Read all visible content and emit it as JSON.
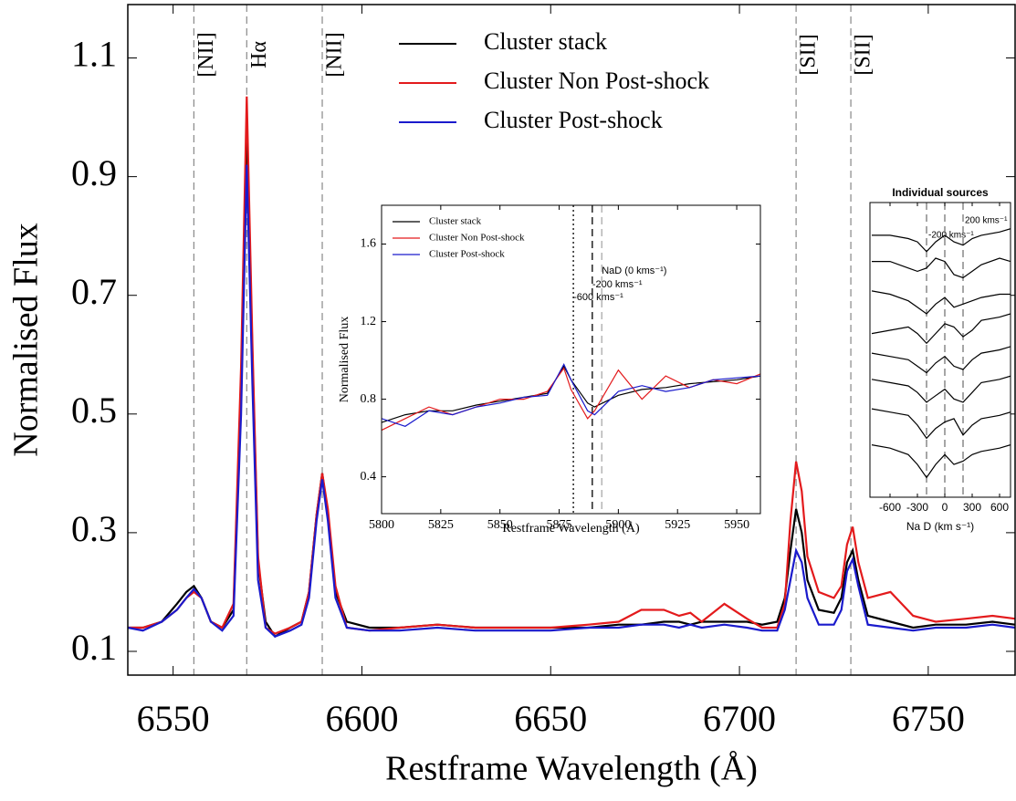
{
  "chart_data": [
    {
      "type": "line",
      "xlabel": "Restframe Wavelength (Å)",
      "ylabel": "Normalised Flux",
      "xlim": [
        6538,
        6773
      ],
      "ylim": [
        0.06,
        1.19
      ],
      "xticks": [
        6550,
        6600,
        6650,
        6700,
        6750
      ],
      "yticks": [
        0.1,
        0.3,
        0.5,
        0.7,
        0.9,
        1.1
      ],
      "legend": "upper center",
      "lines": [
        {
          "x": 6555.5,
          "label": "[NII]",
          "color": "#888888",
          "style": "dashed"
        },
        {
          "x": 6569.5,
          "label": "Hα",
          "color": "#888888",
          "style": "dashed"
        },
        {
          "x": 6589.5,
          "label": "[NII]",
          "color": "#888888",
          "style": "dashed"
        },
        {
          "x": 6715,
          "label": "[SII]",
          "color": "#888888",
          "style": "dashed"
        },
        {
          "x": 6729.5,
          "label": "[SII]",
          "color": "#888888",
          "style": "dashed"
        }
      ],
      "x": [
        6538,
        6542,
        6547,
        6551,
        6553.5,
        6555.5,
        6557.5,
        6560,
        6563,
        6566,
        6568,
        6569.5,
        6571,
        6572.5,
        6574.5,
        6577,
        6581,
        6584,
        6586,
        6588,
        6589.5,
        6591,
        6593,
        6596,
        6602,
        6610,
        6620,
        6630,
        6640,
        6650,
        6660,
        6668,
        6674,
        6680,
        6684,
        6687,
        6690,
        6696,
        6702,
        6706,
        6710,
        6712,
        6713.5,
        6715,
        6716.5,
        6718,
        6721,
        6725,
        6727,
        6728.5,
        6730,
        6731.5,
        6734,
        6740,
        6746,
        6752,
        6760,
        6767,
        6773
      ],
      "series": [
        {
          "name": "Cluster stack",
          "color": "#000000",
          "values": [
            0.14,
            0.14,
            0.15,
            0.18,
            0.2,
            0.21,
            0.19,
            0.15,
            0.14,
            0.17,
            0.55,
            1.0,
            0.6,
            0.25,
            0.15,
            0.125,
            0.14,
            0.15,
            0.2,
            0.33,
            0.4,
            0.33,
            0.2,
            0.15,
            0.14,
            0.14,
            0.145,
            0.14,
            0.14,
            0.14,
            0.14,
            0.145,
            0.145,
            0.15,
            0.15,
            0.145,
            0.15,
            0.15,
            0.15,
            0.145,
            0.15,
            0.19,
            0.27,
            0.34,
            0.3,
            0.22,
            0.17,
            0.165,
            0.19,
            0.25,
            0.27,
            0.22,
            0.16,
            0.15,
            0.14,
            0.145,
            0.145,
            0.15,
            0.145
          ]
        },
        {
          "name": "Cluster Non Post-shock",
          "color": "#e31a1c",
          "values": [
            0.14,
            0.14,
            0.15,
            0.17,
            0.19,
            0.2,
            0.19,
            0.15,
            0.14,
            0.18,
            0.58,
            1.035,
            0.62,
            0.26,
            0.14,
            0.13,
            0.14,
            0.15,
            0.2,
            0.33,
            0.4,
            0.34,
            0.21,
            0.14,
            0.135,
            0.14,
            0.145,
            0.14,
            0.14,
            0.14,
            0.145,
            0.15,
            0.17,
            0.17,
            0.16,
            0.165,
            0.15,
            0.18,
            0.155,
            0.14,
            0.14,
            0.18,
            0.32,
            0.42,
            0.37,
            0.26,
            0.2,
            0.19,
            0.21,
            0.28,
            0.31,
            0.25,
            0.19,
            0.2,
            0.16,
            0.15,
            0.155,
            0.16,
            0.155
          ]
        },
        {
          "name": "Cluster Post-shock",
          "color": "#1a1acc",
          "values": [
            0.14,
            0.135,
            0.15,
            0.17,
            0.19,
            0.205,
            0.19,
            0.15,
            0.135,
            0.16,
            0.5,
            0.92,
            0.55,
            0.22,
            0.14,
            0.125,
            0.135,
            0.145,
            0.19,
            0.32,
            0.39,
            0.32,
            0.19,
            0.14,
            0.135,
            0.135,
            0.14,
            0.135,
            0.135,
            0.135,
            0.14,
            0.14,
            0.145,
            0.145,
            0.14,
            0.145,
            0.14,
            0.145,
            0.14,
            0.135,
            0.135,
            0.17,
            0.22,
            0.27,
            0.25,
            0.19,
            0.145,
            0.145,
            0.17,
            0.235,
            0.255,
            0.21,
            0.145,
            0.14,
            0.135,
            0.14,
            0.14,
            0.145,
            0.14
          ]
        }
      ]
    },
    {
      "type": "line",
      "xlabel": "Restframe Wavelength (Å)",
      "ylabel": "Normalised Flux",
      "xlim": [
        5800,
        5960
      ],
      "ylim": [
        0.21,
        1.8
      ],
      "xticks": [
        5800,
        5825,
        5850,
        5875,
        5900,
        5925,
        5950
      ],
      "yticks": [
        0.4,
        0.8,
        1.2,
        1.6
      ],
      "legend": "upper left",
      "lines": [
        {
          "x": 5881,
          "label": "-600 kms⁻¹",
          "color": "#000000",
          "style": "dotted"
        },
        {
          "x": 5889,
          "label": "-200 kms⁻¹",
          "color": "#000000",
          "style": "dashed"
        },
        {
          "x": 5893,
          "label": "NaD (0 kms⁻¹)",
          "color": "#aaaaaa",
          "style": "dashed"
        }
      ],
      "x": [
        5800,
        5810,
        5820,
        5830,
        5840,
        5850,
        5860,
        5870,
        5877,
        5880,
        5887,
        5890,
        5900,
        5910,
        5920,
        5930,
        5940,
        5950,
        5960
      ],
      "series": [
        {
          "name": "Cluster stack",
          "color": "#000000",
          "values": [
            0.68,
            0.72,
            0.74,
            0.74,
            0.77,
            0.79,
            0.81,
            0.83,
            0.97,
            0.9,
            0.78,
            0.76,
            0.82,
            0.85,
            0.86,
            0.88,
            0.89,
            0.9,
            0.92
          ]
        },
        {
          "name": "Cluster Non Post-shock",
          "color": "#e31a1c",
          "values": [
            0.64,
            0.7,
            0.76,
            0.72,
            0.76,
            0.8,
            0.8,
            0.84,
            0.96,
            0.85,
            0.7,
            0.74,
            0.95,
            0.8,
            0.92,
            0.86,
            0.9,
            0.88,
            0.93
          ]
        },
        {
          "name": "Cluster Post-shock",
          "color": "#1a1acc",
          "values": [
            0.7,
            0.66,
            0.74,
            0.72,
            0.76,
            0.78,
            0.81,
            0.82,
            0.98,
            0.9,
            0.74,
            0.72,
            0.84,
            0.87,
            0.84,
            0.86,
            0.9,
            0.91,
            0.92
          ]
        }
      ]
    },
    {
      "type": "line",
      "title": "Individual sources",
      "xlabel": "Na D (km s⁻¹)",
      "xlim": [
        -820,
        720
      ],
      "ylim": [
        0,
        9
      ],
      "xticks": [
        -600,
        -300,
        0,
        300,
        600
      ],
      "lines": [
        {
          "x": -200,
          "label": "-200 kms⁻¹",
          "color": "#777777",
          "style": "dashed"
        },
        {
          "x": 0,
          "color": "#777777",
          "style": "dashed"
        },
        {
          "x": 200,
          "label": "200 kms⁻¹",
          "color": "#777777",
          "style": "dashed"
        }
      ],
      "x": [
        -800,
        -600,
        -400,
        -300,
        -200,
        -100,
        0,
        100,
        200,
        300,
        400,
        600,
        720
      ],
      "series": [
        {
          "color": "#000000",
          "values": [
            8.0,
            8.0,
            7.9,
            7.8,
            7.5,
            7.8,
            8.0,
            7.8,
            7.7,
            7.9,
            8.0,
            8.1,
            8.2
          ]
        },
        {
          "color": "#000000",
          "values": [
            7.2,
            7.2,
            7.0,
            6.9,
            7.0,
            7.3,
            7.2,
            6.8,
            6.7,
            6.9,
            7.1,
            7.3,
            7.2
          ]
        },
        {
          "color": "#000000",
          "values": [
            6.3,
            6.2,
            6.0,
            5.8,
            5.6,
            5.9,
            6.1,
            5.8,
            5.9,
            6.0,
            6.1,
            6.2,
            6.2
          ]
        },
        {
          "color": "#000000",
          "values": [
            5.0,
            5.1,
            5.2,
            5.0,
            4.7,
            5.0,
            5.3,
            5.2,
            4.9,
            5.1,
            5.4,
            5.5,
            5.6
          ]
        },
        {
          "color": "#000000",
          "values": [
            4.4,
            4.3,
            4.2,
            4.0,
            3.8,
            4.1,
            4.3,
            4.0,
            3.9,
            4.2,
            4.4,
            4.5,
            4.6
          ]
        },
        {
          "color": "#000000",
          "values": [
            3.6,
            3.5,
            3.4,
            3.2,
            2.9,
            3.1,
            3.3,
            3.0,
            2.9,
            3.2,
            3.5,
            3.6,
            3.7
          ]
        },
        {
          "color": "#000000",
          "values": [
            2.7,
            2.6,
            2.5,
            2.2,
            1.8,
            2.1,
            2.3,
            2.4,
            1.9,
            2.2,
            2.4,
            2.5,
            2.6
          ]
        },
        {
          "color": "#000000",
          "values": [
            1.6,
            1.5,
            1.3,
            1.0,
            0.6,
            1.0,
            1.3,
            1.0,
            1.1,
            1.3,
            1.4,
            1.5,
            1.6
          ]
        }
      ]
    }
  ]
}
